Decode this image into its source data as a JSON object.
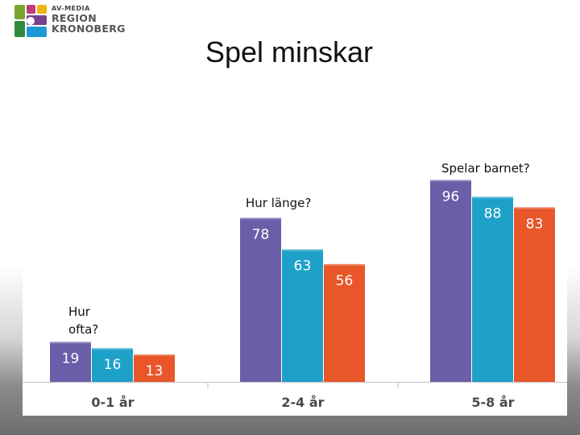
{
  "logo": {
    "line1": "AV-MEDIA",
    "line2": "REGION",
    "line3": "KRONOBERG",
    "colors": [
      "#7aa62f",
      "#2f8b3b",
      "#c23a7a",
      "#f0b417",
      "#7a3f8f",
      "#1d9ad6"
    ]
  },
  "slide": {
    "title": "Spel minskar"
  },
  "annotations": {
    "hur_ofta": "Hur ofta?",
    "hur_lange": "Hur länge?",
    "spelar_barnet": "Spelar barnet?"
  },
  "chart_data": {
    "type": "bar",
    "categories": [
      "0-1 år",
      "2-4 år",
      "5-8 år"
    ],
    "series": [
      {
        "values": [
          19,
          78,
          96
        ],
        "color": "#6b5ea8"
      },
      {
        "values": [
          16,
          63,
          88
        ],
        "color": "#1ea1c9"
      },
      {
        "values": [
          13,
          56,
          83
        ],
        "color": "#e8562a"
      }
    ],
    "ylim": [
      0,
      100
    ],
    "grid": false,
    "data_labels": true,
    "label_color": "#4a4a4a",
    "label_color_on_bar": "#ffffff"
  }
}
